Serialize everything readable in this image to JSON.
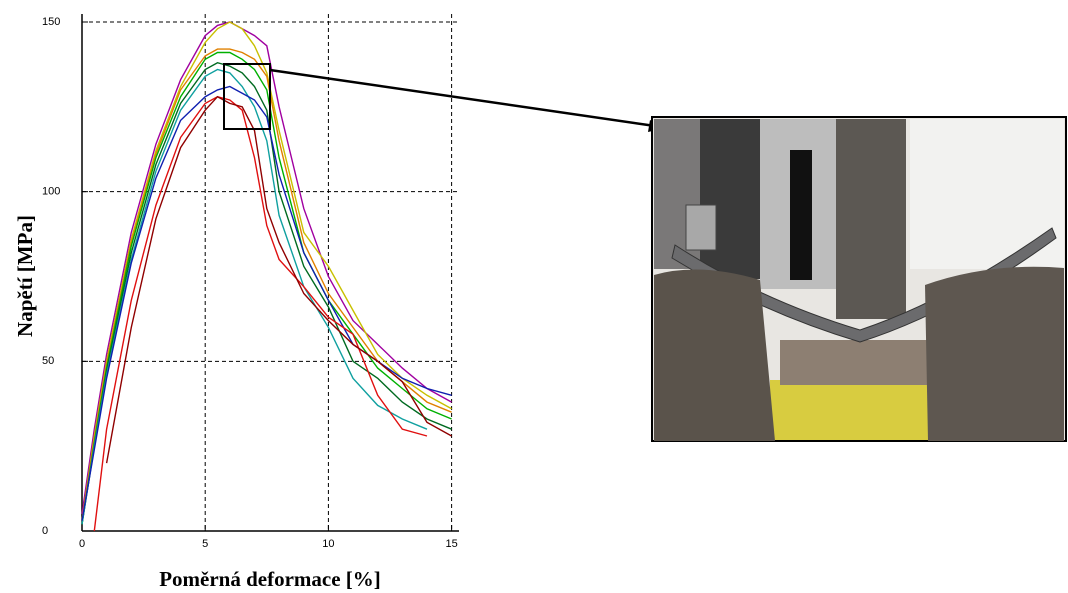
{
  "chart_data": {
    "type": "line",
    "x_label": "Poměrná deformace [%]",
    "y_label": "Napětí [MPa]",
    "x": [
      0,
      0.5,
      1,
      2,
      3,
      4,
      5,
      5.5,
      6,
      6.5,
      7,
      7.5,
      8,
      9,
      10,
      11,
      12,
      13,
      14,
      15
    ],
    "series": [
      {
        "color": "#a000a0",
        "values": [
          5,
          30,
          52,
          88,
          114,
          133,
          146,
          149,
          150,
          148,
          146,
          143,
          125,
          95,
          75,
          62,
          55,
          48,
          42,
          38
        ]
      },
      {
        "color": "#c8c000",
        "values": [
          3,
          28,
          50,
          86,
          112,
          131,
          144,
          148,
          150,
          148,
          143,
          135,
          118,
          88,
          78,
          65,
          52,
          45,
          40,
          36
        ]
      },
      {
        "color": "#e08000",
        "values": [
          3,
          27,
          49,
          85,
          111,
          130,
          140,
          142,
          142,
          141,
          139,
          134,
          115,
          85,
          70,
          60,
          50,
          44,
          38,
          35
        ]
      },
      {
        "color": "#00b000",
        "values": [
          2,
          26,
          48,
          84,
          110,
          128,
          139,
          141,
          141,
          139,
          136,
          130,
          110,
          82,
          68,
          58,
          48,
          42,
          36,
          33
        ]
      },
      {
        "color": "#006a20",
        "values": [
          2,
          25,
          47,
          82,
          108,
          126,
          136,
          138,
          137,
          135,
          131,
          124,
          100,
          78,
          66,
          50,
          45,
          38,
          33,
          30
        ]
      },
      {
        "color": "#10a0a0",
        "values": [
          2,
          25,
          46,
          80,
          106,
          124,
          134,
          136,
          135,
          131,
          125,
          115,
          93,
          72,
          60,
          45,
          37,
          33,
          30,
          null
        ]
      },
      {
        "color": "#1020b0",
        "values": [
          3,
          24,
          45,
          79,
          104,
          121,
          128,
          130,
          131,
          129,
          127,
          122,
          105,
          82,
          68,
          55,
          50,
          45,
          42,
          40
        ]
      },
      {
        "color": "#e01010",
        "values": [
          null,
          0,
          30,
          68,
          96,
          116,
          126,
          128,
          127,
          124,
          110,
          90,
          80,
          72,
          63,
          58,
          40,
          30,
          28,
          null
        ]
      },
      {
        "color": "#900000",
        "values": [
          null,
          null,
          20,
          60,
          92,
          113,
          124,
          128,
          126,
          125,
          118,
          95,
          85,
          70,
          62,
          55,
          50,
          44,
          32,
          28
        ]
      }
    ],
    "xlim": [
      0,
      15.3
    ],
    "ylim": [
      0,
      150
    ],
    "xticks": [
      0,
      5,
      10,
      15
    ],
    "yticks": [
      0,
      50,
      100,
      150
    ],
    "grid": true
  }
}
